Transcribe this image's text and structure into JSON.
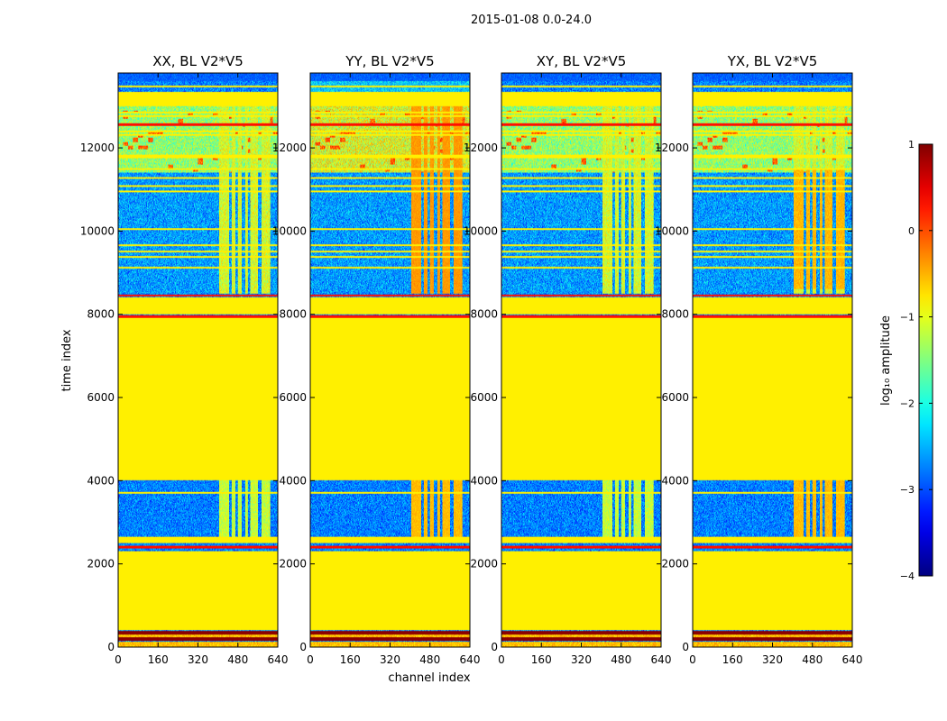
{
  "chart_data": {
    "type": "heatmap",
    "suptitle": "2015-01-08 0.0-24.0",
    "xlabel": "channel index",
    "ylabel": "time index",
    "xlim": [
      0,
      640
    ],
    "ylim": [
      0,
      13800
    ],
    "xticks": [
      0,
      160,
      320,
      480,
      640
    ],
    "yticks": [
      0,
      2000,
      4000,
      6000,
      8000,
      10000,
      12000
    ],
    "panels": [
      {
        "title": "XX, BL V2*V5",
        "pol": "XX"
      },
      {
        "title": "YY, BL V2*V5",
        "pol": "YY"
      },
      {
        "title": "XY, BL V2*V5",
        "pol": "XY"
      },
      {
        "title": "YX, BL V2*V5",
        "pol": "YX"
      }
    ],
    "colorbar": {
      "label": "log₁₀ amplitude",
      "range": [
        -4,
        1
      ],
      "ticks": [
        1,
        0,
        -1,
        -2,
        -3,
        -4
      ],
      "tick_labels": [
        "1",
        "0",
        "−1",
        "−2",
        "−3",
        "−4"
      ],
      "colormap": "jet"
    },
    "regions": {
      "flagged_time_ranges": [
        [
          420,
          2300
        ],
        [
          2500,
          2650
        ],
        [
          4000,
          7900
        ],
        [
          8000,
          8400
        ]
      ],
      "flagged_value": -0.8,
      "band_rfi_channels": [
        [
          405,
          445
        ],
        [
          455,
          470
        ],
        [
          480,
          495
        ],
        [
          510,
          520
        ],
        [
          530,
          560
        ],
        [
          575,
          610
        ]
      ],
      "bright_time_rows": [
        [
          2370,
          2440
        ],
        [
          7920,
          7980
        ],
        [
          8440,
          8470
        ],
        [
          12520,
          12600
        ]
      ],
      "dark_time_rows": [
        [
          150,
          240
        ],
        [
          300,
          390
        ]
      ],
      "sparse_bottom_rows": [
        [
          0,
          130
        ],
        [
          240,
          300
        ]
      ]
    }
  }
}
